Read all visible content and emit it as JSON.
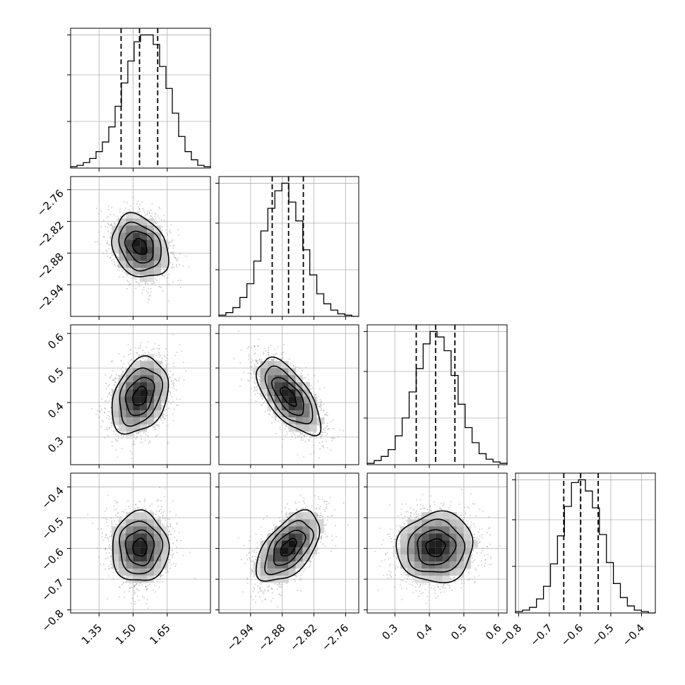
{
  "chart_data": {
    "type": "corner",
    "parameters": [
      {
        "id": "p1",
        "xlim": [
          1.225,
          1.84
        ],
        "ticks": [
          1.35,
          1.5,
          1.65
        ],
        "tick_labels": [
          "1.35",
          "1.50",
          "1.65"
        ],
        "mean": 1.53,
        "sd": 0.062,
        "quantiles": [
          1.447,
          1.528,
          1.608
        ]
      },
      {
        "id": "p2",
        "xlim": [
          -3.0,
          -2.735
        ],
        "ticks": [
          -2.94,
          -2.88,
          -2.82,
          -2.76
        ],
        "tick_labels": [
          "−2.94",
          "−2.88",
          "−2.82",
          "−2.76"
        ],
        "mean": -2.868,
        "sd": 0.03,
        "quantiles": [
          -2.899,
          -2.868,
          -2.84
        ]
      },
      {
        "id": "p3",
        "xlim": [
          0.22,
          0.625
        ],
        "ticks": [
          0.3,
          0.4,
          0.5,
          0.6
        ],
        "tick_labels": [
          "0.3",
          "0.4",
          "0.5",
          "0.6"
        ],
        "mean": 0.418,
        "sd": 0.055,
        "quantiles": [
          0.362,
          0.418,
          0.474
        ]
      },
      {
        "id": "p4",
        "xlim": [
          -0.81,
          -0.355
        ],
        "ticks": [
          -0.8,
          -0.7,
          -0.6,
          -0.5,
          -0.4
        ],
        "tick_labels": [
          "−0.8",
          "−0.7",
          "−0.6",
          "−0.5",
          "−0.4"
        ],
        "mean": -0.597,
        "sd": 0.057,
        "quantiles": [
          -0.653,
          -0.598,
          -0.541
        ]
      }
    ],
    "histograms": [
      {
        "param": 0,
        "edges_range": [
          1.225,
          1.84
        ],
        "counts": [
          1,
          2,
          4,
          7,
          12,
          19,
          30,
          45,
          62,
          78,
          92,
          97,
          97,
          90,
          74,
          58,
          40,
          23,
          12,
          6,
          2,
          1
        ]
      },
      {
        "param": 1,
        "edges_range": [
          -3.0,
          -2.735
        ],
        "counts": [
          1,
          3,
          7,
          15,
          26,
          44,
          68,
          86,
          100,
          106,
          91,
          76,
          53,
          33,
          18,
          10,
          5,
          2,
          1,
          0
        ]
      },
      {
        "param": 2,
        "edges_range": [
          0.22,
          0.625
        ],
        "counts": [
          1,
          3,
          6,
          11,
          21,
          34,
          53,
          70,
          88,
          97,
          93,
          83,
          65,
          44,
          27,
          16,
          8,
          4,
          2,
          1
        ]
      },
      {
        "param": 3,
        "edges_range": [
          -0.81,
          -0.355
        ],
        "counts": [
          1,
          2,
          4,
          10,
          19,
          35,
          55,
          76,
          93,
          95,
          87,
          75,
          56,
          36,
          21,
          11,
          5,
          2,
          1,
          0
        ]
      }
    ],
    "correlations": [
      [
        0,
        1,
        -0.25
      ],
      [
        0,
        2,
        0.3
      ],
      [
        0,
        3,
        0.0
      ],
      [
        1,
        2,
        -0.65
      ],
      [
        1,
        3,
        0.55
      ],
      [
        2,
        3,
        0.05
      ]
    ],
    "grid": true
  }
}
